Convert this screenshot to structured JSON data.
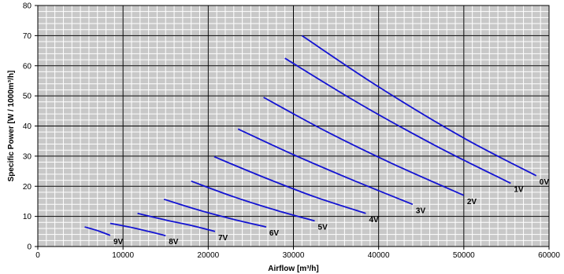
{
  "chart_data": {
    "type": "line",
    "title": "",
    "xlabel": "Airflow [m³/h]",
    "ylabel": "Specific Power [W / 1000m³/h]",
    "xlim": [
      0,
      60000
    ],
    "ylim": [
      0,
      80
    ],
    "x_ticks": [
      0,
      10000,
      20000,
      30000,
      40000,
      50000,
      60000
    ],
    "y_ticks": [
      0,
      10,
      20,
      30,
      40,
      50,
      60,
      70,
      80
    ],
    "grid": true,
    "legend": "none",
    "colors": {
      "line": "#1414d2",
      "plot_background": "#c8c8c8",
      "major_grid": "#000000",
      "minor_grid": "#ffffff"
    },
    "series": [
      {
        "name": "0V",
        "points": [
          [
            31000,
            70
          ],
          [
            40000,
            53
          ],
          [
            50000,
            36
          ],
          [
            58500,
            23.5
          ]
        ]
      },
      {
        "name": "1V",
        "points": [
          [
            29000,
            62.5
          ],
          [
            38000,
            47
          ],
          [
            47000,
            33
          ],
          [
            55500,
            21
          ]
        ]
      },
      {
        "name": "2V",
        "points": [
          [
            26500,
            49.5
          ],
          [
            34000,
            38
          ],
          [
            42000,
            27
          ],
          [
            50000,
            17
          ]
        ]
      },
      {
        "name": "3V",
        "points": [
          [
            23500,
            39
          ],
          [
            30000,
            30.5
          ],
          [
            37000,
            22
          ],
          [
            44000,
            14
          ]
        ]
      },
      {
        "name": "4V",
        "points": [
          [
            20700,
            29.8
          ],
          [
            26500,
            23
          ],
          [
            32500,
            16.5
          ],
          [
            38500,
            11
          ]
        ]
      },
      {
        "name": "5V",
        "points": [
          [
            18000,
            21.7
          ],
          [
            23000,
            16.5
          ],
          [
            28000,
            12
          ],
          [
            32500,
            8.5
          ]
        ]
      },
      {
        "name": "6V",
        "points": [
          [
            14800,
            15.7
          ],
          [
            19000,
            12
          ],
          [
            23000,
            9
          ],
          [
            26800,
            6.5
          ]
        ]
      },
      {
        "name": "7V",
        "points": [
          [
            11700,
            11
          ],
          [
            15000,
            8.8
          ],
          [
            18000,
            7
          ],
          [
            20800,
            5
          ]
        ]
      },
      {
        "name": "8V",
        "points": [
          [
            8500,
            7.7
          ],
          [
            11000,
            6.3
          ],
          [
            13000,
            5
          ],
          [
            15000,
            3.6
          ]
        ]
      },
      {
        "name": "9V",
        "points": [
          [
            5500,
            6.5
          ],
          [
            7000,
            5.3
          ],
          [
            8500,
            3.7
          ]
        ]
      }
    ]
  }
}
